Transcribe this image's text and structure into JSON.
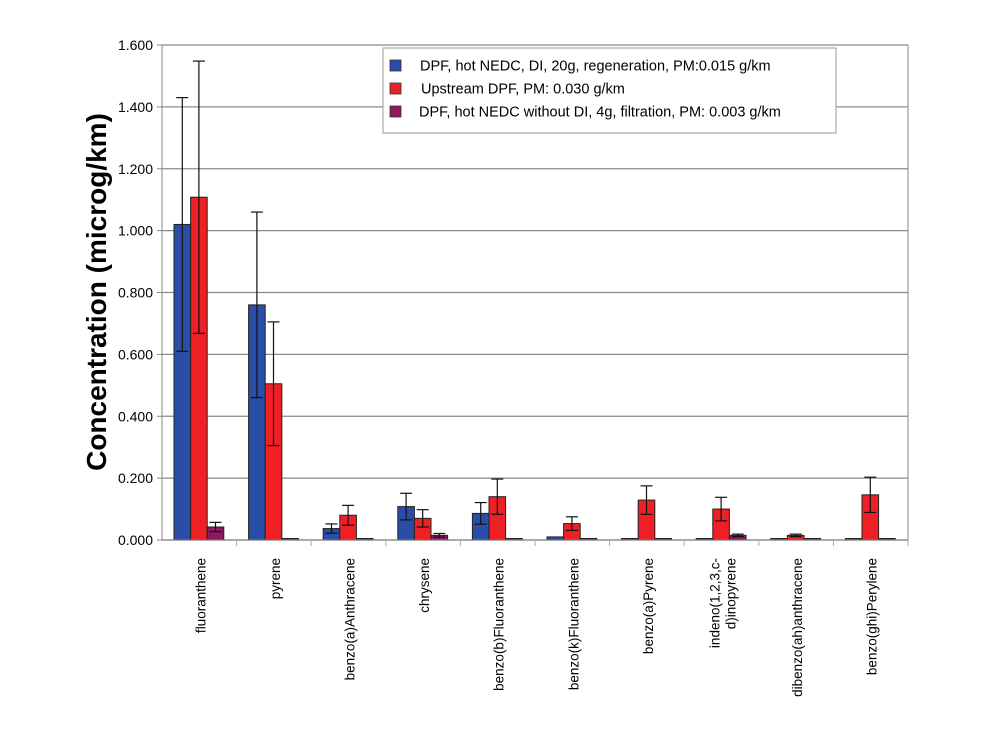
{
  "chart_data": {
    "type": "bar",
    "title": "",
    "xlabel": "",
    "ylabel": "Concentration (microg/km)",
    "ylim": [
      0,
      1.6
    ],
    "yticks": [
      "0.000",
      "0.200",
      "0.400",
      "0.600",
      "0.800",
      "1.000",
      "1.200",
      "1.400",
      "1.600"
    ],
    "ytick_values": [
      0,
      0.2,
      0.4,
      0.6,
      0.8,
      1.0,
      1.2,
      1.4,
      1.6
    ],
    "grid": true,
    "legend_position": "top-right",
    "categories": [
      "fluoranthene",
      "pyrene",
      "benzo(a)Anthracene",
      "chrysene",
      "benzo(b)Fluoranthene",
      "benzo(k)Fluoranthene",
      "benzo(a)Pyrene",
      "indeno(1,2,3,c-\nd)inopyrene",
      "dibenzo(ah)anthracene",
      "benzo(ghi)Perylene"
    ],
    "series": [
      {
        "name": "DPF, hot NEDC, DI, 20g, regeneration, PM:0.015 g/km",
        "color": "#2a4ea6",
        "values": [
          1.02,
          0.76,
          0.037,
          0.108,
          0.086,
          0.01,
          0.003,
          0.003,
          0.0,
          0.003
        ],
        "errors": [
          0.41,
          0.3,
          0.015,
          0.043,
          0.035,
          0,
          0,
          0,
          0,
          0
        ]
      },
      {
        "name": "Upstream DPF, PM: 0.030 g/km",
        "color": "#ee1f25",
        "values": [
          1.108,
          0.505,
          0.08,
          0.07,
          0.14,
          0.053,
          0.129,
          0.1,
          0.015,
          0.146
        ],
        "errors": [
          0.44,
          0.2,
          0.032,
          0.028,
          0.057,
          0.022,
          0.046,
          0.038,
          0.004,
          0.057
        ]
      },
      {
        "name": "DPF, hot NEDC without DI, 4g, filtration, PM: 0.003 g/km",
        "color": "#8b1a5e",
        "values": [
          0.042,
          0.0,
          0.003,
          0.015,
          0.003,
          0.0,
          0.0,
          0.015,
          0.003,
          0.0
        ],
        "errors": [
          0.015,
          0,
          0,
          0.006,
          0,
          0,
          0,
          0.004,
          0,
          0
        ]
      }
    ]
  }
}
